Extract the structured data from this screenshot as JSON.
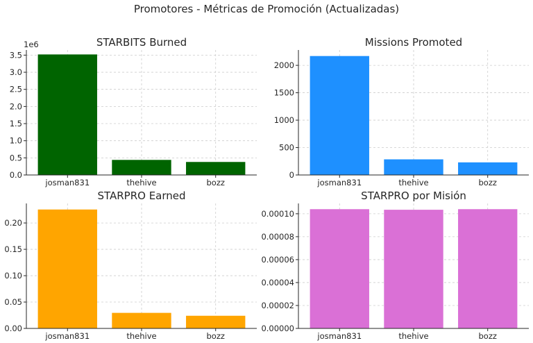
{
  "suptitle": "Promotores - Métricas de Promoción (Actualizadas)",
  "chart_data": [
    {
      "type": "bar",
      "title": "STARBITS Burned",
      "categories": [
        "josman831",
        "thehive",
        "bozz"
      ],
      "values": [
        3520000,
        440000,
        380000
      ],
      "color": "#006400",
      "ylim": [
        0,
        3650000
      ],
      "yticks": [
        0,
        500000,
        1000000,
        1500000,
        2000000,
        2500000,
        3000000,
        3500000
      ],
      "ytick_labels": [
        "0.0",
        "0.5",
        "1.0",
        "1.5",
        "2.0",
        "2.5",
        "3.0",
        "3.5"
      ],
      "offset_label": "1e6",
      "grid": true
    },
    {
      "type": "bar",
      "title": "Missions Promoted",
      "categories": [
        "josman831",
        "thehive",
        "bozz"
      ],
      "values": [
        2170,
        285,
        230
      ],
      "color": "#1E90FF",
      "ylim": [
        0,
        2280
      ],
      "yticks": [
        0,
        500,
        1000,
        1500,
        2000
      ],
      "ytick_labels": [
        "0",
        "500",
        "1000",
        "1500",
        "2000"
      ],
      "grid": true
    },
    {
      "type": "bar",
      "title": "STARPRO Earned",
      "categories": [
        "josman831",
        "thehive",
        "bozz"
      ],
      "values": [
        0.2255,
        0.0295,
        0.024
      ],
      "color": "#FFA500",
      "ylim": [
        0,
        0.237
      ],
      "yticks": [
        0,
        0.05,
        0.1,
        0.15,
        0.2
      ],
      "ytick_labels": [
        "0.00",
        "0.05",
        "0.10",
        "0.15",
        "0.20"
      ],
      "grid": true
    },
    {
      "type": "bar",
      "title": "STARPRO por Misión",
      "categories": [
        "josman831",
        "thehive",
        "bozz"
      ],
      "values": [
        0.000104,
        0.0001035,
        0.000104
      ],
      "color": "#DA70D6",
      "ylim": [
        0,
        0.000109
      ],
      "yticks": [
        0,
        2e-05,
        4e-05,
        6e-05,
        8e-05,
        0.0001
      ],
      "ytick_labels": [
        "0.00000",
        "0.00002",
        "0.00004",
        "0.00006",
        "0.00008",
        "0.00010"
      ],
      "grid": true
    }
  ]
}
